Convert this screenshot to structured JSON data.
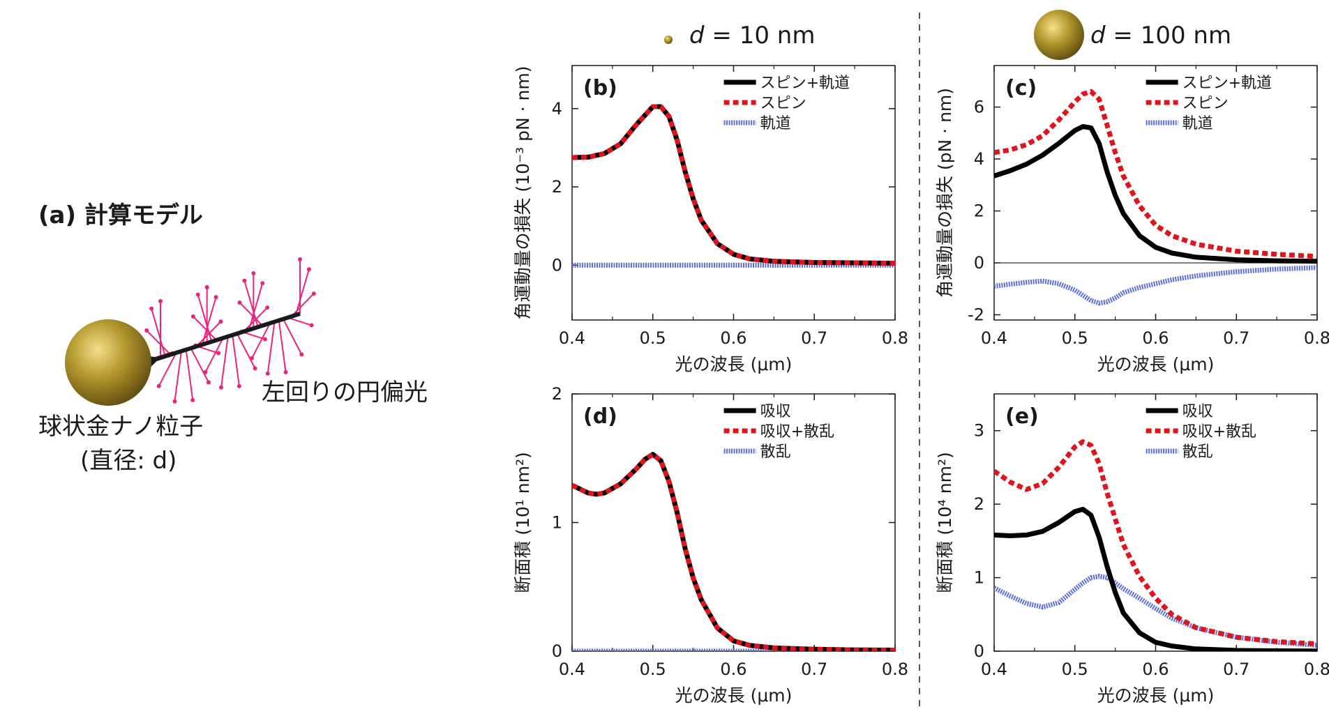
{
  "colors": {
    "total": "#000000",
    "spin": "#e0141c",
    "orbital": "#5a6fd8",
    "arrow": "#e8247c",
    "gold": "#b59a2e"
  },
  "model": {
    "title": "(a) 計算モデル",
    "particle_label": "球状金ナノ粒子",
    "diameter_label": "(直径: d)",
    "light_label": "左回りの円偏光"
  },
  "columns": [
    {
      "prefix": "d",
      "rest": " = 10 nm"
    },
    {
      "prefix": "d",
      "rest": " = 100 nm"
    }
  ],
  "chart_data": [
    {
      "id": "b",
      "type": "line",
      "label": "(b)",
      "xlabel": "光の波長 (μm)",
      "ylabel": "角運動量の損失 (10⁻³ pN · nm)",
      "xlim": [
        0.4,
        0.8
      ],
      "ylim": [
        -1.4,
        5.1
      ],
      "xticks": [
        0.4,
        0.5,
        0.6,
        0.7,
        0.8
      ],
      "xtick_labels": [
        "0.4",
        "0.5",
        "0.6",
        "0.7",
        "0.8"
      ],
      "yticks": [
        0,
        2,
        4
      ],
      "ytick_labels": [
        "0",
        "2",
        "4"
      ],
      "zero_line": false,
      "x": [
        0.4,
        0.42,
        0.44,
        0.46,
        0.48,
        0.5,
        0.51,
        0.52,
        0.53,
        0.54,
        0.55,
        0.56,
        0.58,
        0.6,
        0.62,
        0.65,
        0.7,
        0.75,
        0.8
      ],
      "series": [
        {
          "name": "スピン+軌道",
          "style": "total",
          "values": [
            2.75,
            2.76,
            2.85,
            3.1,
            3.6,
            4.05,
            4.05,
            3.8,
            3.2,
            2.4,
            1.7,
            1.15,
            0.55,
            0.28,
            0.16,
            0.1,
            0.07,
            0.06,
            0.05
          ]
        },
        {
          "name": "スピン",
          "style": "spin",
          "values": [
            2.75,
            2.76,
            2.85,
            3.1,
            3.6,
            4.05,
            4.05,
            3.8,
            3.2,
            2.4,
            1.7,
            1.15,
            0.55,
            0.28,
            0.16,
            0.1,
            0.07,
            0.06,
            0.05
          ]
        },
        {
          "name": "軌道",
          "style": "orbital",
          "values": [
            0,
            0,
            0,
            0,
            0,
            0,
            0,
            0,
            0,
            0,
            0,
            0,
            0,
            0,
            0,
            0,
            0,
            0,
            0
          ]
        }
      ]
    },
    {
      "id": "c",
      "type": "line",
      "label": "(c)",
      "xlabel": "光の波長 (μm)",
      "ylabel": "角運動量の損失 (pN · nm)",
      "xlim": [
        0.4,
        0.8
      ],
      "ylim": [
        -2.2,
        7.6
      ],
      "xticks": [
        0.4,
        0.5,
        0.6,
        0.7,
        0.8
      ],
      "xtick_labels": [
        "0.4",
        "0.5",
        "0.6",
        "0.7",
        "0.8"
      ],
      "yticks": [
        -2,
        0,
        2,
        4,
        6
      ],
      "ytick_labels": [
        "-2",
        "0",
        "2",
        "4",
        "6"
      ],
      "zero_line": true,
      "x": [
        0.4,
        0.42,
        0.44,
        0.46,
        0.48,
        0.5,
        0.51,
        0.52,
        0.53,
        0.54,
        0.55,
        0.56,
        0.58,
        0.6,
        0.62,
        0.65,
        0.7,
        0.75,
        0.8
      ],
      "series": [
        {
          "name": "スピン+軌道",
          "style": "total",
          "values": [
            3.35,
            3.55,
            3.8,
            4.15,
            4.6,
            5.1,
            5.25,
            5.2,
            4.6,
            3.5,
            2.6,
            1.9,
            1.05,
            0.6,
            0.38,
            0.22,
            0.12,
            0.08,
            0.06
          ]
        },
        {
          "name": "スピン",
          "style": "spin",
          "values": [
            4.25,
            4.35,
            4.55,
            4.9,
            5.5,
            6.2,
            6.5,
            6.6,
            6.3,
            5.3,
            4.25,
            3.35,
            2.2,
            1.45,
            1.05,
            0.72,
            0.45,
            0.33,
            0.25
          ]
        },
        {
          "name": "軌道",
          "style": "orbital",
          "values": [
            -0.9,
            -0.82,
            -0.75,
            -0.7,
            -0.8,
            -1.05,
            -1.25,
            -1.45,
            -1.55,
            -1.5,
            -1.35,
            -1.15,
            -0.95,
            -0.8,
            -0.65,
            -0.5,
            -0.34,
            -0.24,
            -0.18
          ]
        }
      ]
    },
    {
      "id": "d",
      "type": "line",
      "label": "(d)",
      "xlabel": "光の波長 (μm)",
      "ylabel": "断面積 (10¹ nm²)",
      "xlim": [
        0.4,
        0.8
      ],
      "ylim": [
        0,
        2
      ],
      "xticks": [
        0.4,
        0.5,
        0.6,
        0.7,
        0.8
      ],
      "xtick_labels": [
        "0.4",
        "0.5",
        "0.6",
        "0.7",
        "0.8"
      ],
      "yticks": [
        0,
        1,
        2
      ],
      "ytick_labels": [
        "0",
        "1",
        "2"
      ],
      "zero_line": false,
      "x": [
        0.4,
        0.42,
        0.43,
        0.44,
        0.46,
        0.48,
        0.49,
        0.5,
        0.51,
        0.52,
        0.53,
        0.54,
        0.55,
        0.56,
        0.58,
        0.6,
        0.62,
        0.65,
        0.7,
        0.75,
        0.8
      ],
      "series": [
        {
          "name": "吸収",
          "style": "total",
          "values": [
            1.29,
            1.23,
            1.22,
            1.23,
            1.3,
            1.42,
            1.49,
            1.53,
            1.48,
            1.32,
            1.08,
            0.8,
            0.57,
            0.4,
            0.18,
            0.08,
            0.045,
            0.025,
            0.015,
            0.01,
            0.008
          ]
        },
        {
          "name": "吸収+散乱",
          "style": "spin",
          "values": [
            1.29,
            1.23,
            1.22,
            1.23,
            1.3,
            1.42,
            1.49,
            1.53,
            1.48,
            1.32,
            1.08,
            0.8,
            0.57,
            0.4,
            0.18,
            0.08,
            0.045,
            0.025,
            0.015,
            0.01,
            0.008
          ]
        },
        {
          "name": "散乱",
          "style": "orbital",
          "values": [
            0,
            0,
            0,
            0,
            0,
            0,
            0,
            0,
            0,
            0,
            0,
            0,
            0,
            0,
            0,
            0,
            0,
            0,
            0,
            0,
            0
          ]
        }
      ]
    },
    {
      "id": "e",
      "type": "line",
      "label": "(e)",
      "xlabel": "光の波長 (μm)",
      "ylabel": "断面積 (10⁴ nm²)",
      "xlim": [
        0.4,
        0.8
      ],
      "ylim": [
        0,
        3.5
      ],
      "xticks": [
        0.4,
        0.5,
        0.6,
        0.7,
        0.8
      ],
      "xtick_labels": [
        "0.4",
        "0.5",
        "0.6",
        "0.7",
        "0.8"
      ],
      "yticks": [
        0,
        1,
        2,
        3
      ],
      "ytick_labels": [
        "0",
        "1",
        "2",
        "3"
      ],
      "zero_line": false,
      "x": [
        0.4,
        0.42,
        0.44,
        0.46,
        0.48,
        0.5,
        0.51,
        0.52,
        0.53,
        0.54,
        0.55,
        0.56,
        0.58,
        0.6,
        0.62,
        0.65,
        0.7,
        0.75,
        0.8
      ],
      "series": [
        {
          "name": "吸収",
          "style": "total",
          "values": [
            1.58,
            1.57,
            1.58,
            1.63,
            1.75,
            1.9,
            1.93,
            1.85,
            1.55,
            1.15,
            0.8,
            0.52,
            0.25,
            0.12,
            0.07,
            0.03,
            0.01,
            0.005,
            0.003
          ]
        },
        {
          "name": "吸収+散乱",
          "style": "spin",
          "values": [
            2.45,
            2.3,
            2.2,
            2.28,
            2.5,
            2.78,
            2.85,
            2.8,
            2.55,
            2.15,
            1.8,
            1.45,
            1.02,
            0.72,
            0.5,
            0.32,
            0.19,
            0.13,
            0.1
          ]
        },
        {
          "name": "散乱",
          "style": "orbital",
          "values": [
            0.86,
            0.75,
            0.65,
            0.6,
            0.66,
            0.84,
            0.93,
            1.0,
            1.02,
            1.0,
            0.93,
            0.85,
            0.72,
            0.58,
            0.45,
            0.32,
            0.19,
            0.12,
            0.08
          ]
        }
      ]
    }
  ]
}
